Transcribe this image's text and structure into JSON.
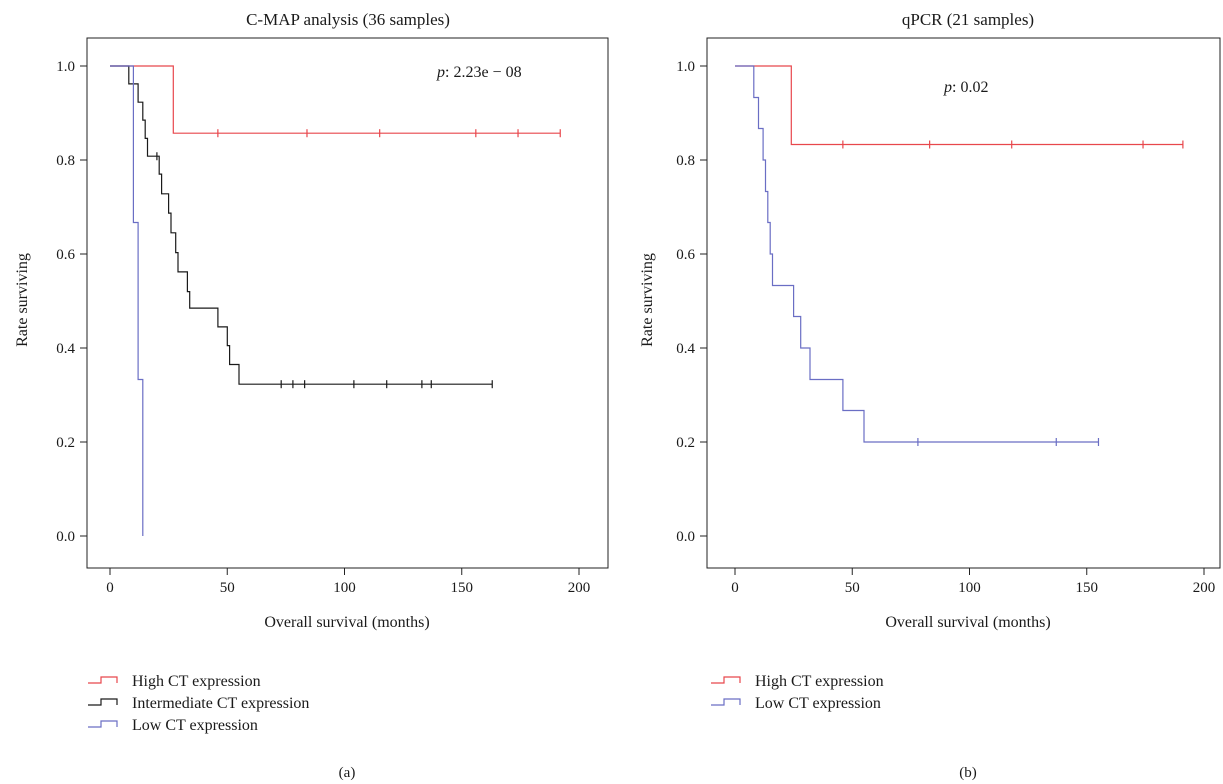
{
  "chart_data": [
    {
      "type": "line",
      "subtype": "kaplan-meier",
      "panel_label": "(a)",
      "title": "C-MAP analysis (36 samples)",
      "xlabel": "Overall survival (months)",
      "ylabel": "Rate surviving",
      "xlim": [
        0,
        200
      ],
      "ylim": [
        0.0,
        1.0
      ],
      "xticks": [
        "0",
        "50",
        "100",
        "150",
        "200"
      ],
      "yticks": [
        "0.0",
        "0.2",
        "0.4",
        "0.6",
        "0.8",
        "1.0"
      ],
      "annotation": {
        "prefix": "p",
        "value": ": 2.23e − 08"
      },
      "legend_position": "bottom-left",
      "series": [
        {
          "name": "High CT expression",
          "color": "#e8474c",
          "steps": [
            [
              0,
              1.0
            ],
            [
              27,
              1.0
            ],
            [
              27,
              0.857
            ],
            [
              192,
              0.857
            ]
          ],
          "censored": [
            [
              46,
              0.857
            ],
            [
              84,
              0.857
            ],
            [
              115,
              0.857
            ],
            [
              156,
              0.857
            ],
            [
              174,
              0.857
            ],
            [
              192,
              0.857
            ]
          ]
        },
        {
          "name": "Intermediate CT expression",
          "color": "#1a1a1a",
          "steps": [
            [
              0,
              1.0
            ],
            [
              8,
              1.0
            ],
            [
              8,
              0.962
            ],
            [
              12,
              0.962
            ],
            [
              12,
              0.923
            ],
            [
              14,
              0.923
            ],
            [
              14,
              0.885
            ],
            [
              15,
              0.885
            ],
            [
              15,
              0.846
            ],
            [
              16,
              0.846
            ],
            [
              16,
              0.808
            ],
            [
              21,
              0.808
            ],
            [
              21,
              0.77
            ],
            [
              22,
              0.77
            ],
            [
              22,
              0.728
            ],
            [
              25,
              0.728
            ],
            [
              25,
              0.687
            ],
            [
              26,
              0.687
            ],
            [
              26,
              0.645
            ],
            [
              28,
              0.645
            ],
            [
              28,
              0.603
            ],
            [
              29,
              0.603
            ],
            [
              29,
              0.562
            ],
            [
              33,
              0.562
            ],
            [
              33,
              0.52
            ],
            [
              34,
              0.52
            ],
            [
              34,
              0.485
            ],
            [
              46,
              0.485
            ],
            [
              46,
              0.445
            ],
            [
              50,
              0.445
            ],
            [
              50,
              0.405
            ],
            [
              51,
              0.405
            ],
            [
              51,
              0.365
            ],
            [
              55,
              0.365
            ],
            [
              55,
              0.323
            ],
            [
              163,
              0.323
            ]
          ],
          "censored": [
            [
              20,
              0.808
            ],
            [
              73,
              0.323
            ],
            [
              78,
              0.323
            ],
            [
              83,
              0.323
            ],
            [
              104,
              0.323
            ],
            [
              118,
              0.323
            ],
            [
              133,
              0.323
            ],
            [
              137,
              0.323
            ],
            [
              163,
              0.323
            ]
          ]
        },
        {
          "name": "Low CT expression",
          "color": "#6a6ec4",
          "steps": [
            [
              0,
              1.0
            ],
            [
              10,
              1.0
            ],
            [
              10,
              0.667
            ],
            [
              12,
              0.667
            ],
            [
              12,
              0.333
            ],
            [
              14,
              0.333
            ],
            [
              14,
              0.0
            ]
          ],
          "censored": []
        }
      ]
    },
    {
      "type": "line",
      "subtype": "kaplan-meier",
      "panel_label": "(b)",
      "title": "qPCR (21 samples)",
      "xlabel": "Overall survival (months)",
      "ylabel": "Rate surviving",
      "xlim": [
        0,
        200
      ],
      "ylim": [
        0.0,
        1.0
      ],
      "xticks": [
        "0",
        "50",
        "100",
        "150",
        "200"
      ],
      "yticks": [
        "0.0",
        "0.2",
        "0.4",
        "0.6",
        "0.8",
        "1.0"
      ],
      "annotation": {
        "prefix": "p",
        "value": ": 0.02"
      },
      "legend_position": "bottom-left",
      "series": [
        {
          "name": "High CT expression",
          "color": "#e8474c",
          "steps": [
            [
              0,
              1.0
            ],
            [
              24,
              1.0
            ],
            [
              24,
              0.833
            ],
            [
              191,
              0.833
            ]
          ],
          "censored": [
            [
              46,
              0.833
            ],
            [
              83,
              0.833
            ],
            [
              118,
              0.833
            ],
            [
              174,
              0.833
            ],
            [
              191,
              0.833
            ]
          ]
        },
        {
          "name": "Low CT expression",
          "color": "#6a6ec4",
          "steps": [
            [
              0,
              1.0
            ],
            [
              8,
              1.0
            ],
            [
              8,
              0.933
            ],
            [
              10,
              0.933
            ],
            [
              10,
              0.867
            ],
            [
              12,
              0.867
            ],
            [
              12,
              0.8
            ],
            [
              13,
              0.8
            ],
            [
              13,
              0.733
            ],
            [
              14,
              0.733
            ],
            [
              14,
              0.667
            ],
            [
              15,
              0.667
            ],
            [
              15,
              0.6
            ],
            [
              16,
              0.6
            ],
            [
              16,
              0.533
            ],
            [
              25,
              0.533
            ],
            [
              25,
              0.467
            ],
            [
              28,
              0.467
            ],
            [
              28,
              0.4
            ],
            [
              32,
              0.4
            ],
            [
              32,
              0.333
            ],
            [
              46,
              0.333
            ],
            [
              46,
              0.267
            ],
            [
              55,
              0.267
            ],
            [
              55,
              0.2
            ],
            [
              155,
              0.2
            ]
          ],
          "censored": [
            [
              78,
              0.2
            ],
            [
              137,
              0.2
            ],
            [
              155,
              0.2
            ]
          ]
        }
      ]
    }
  ]
}
